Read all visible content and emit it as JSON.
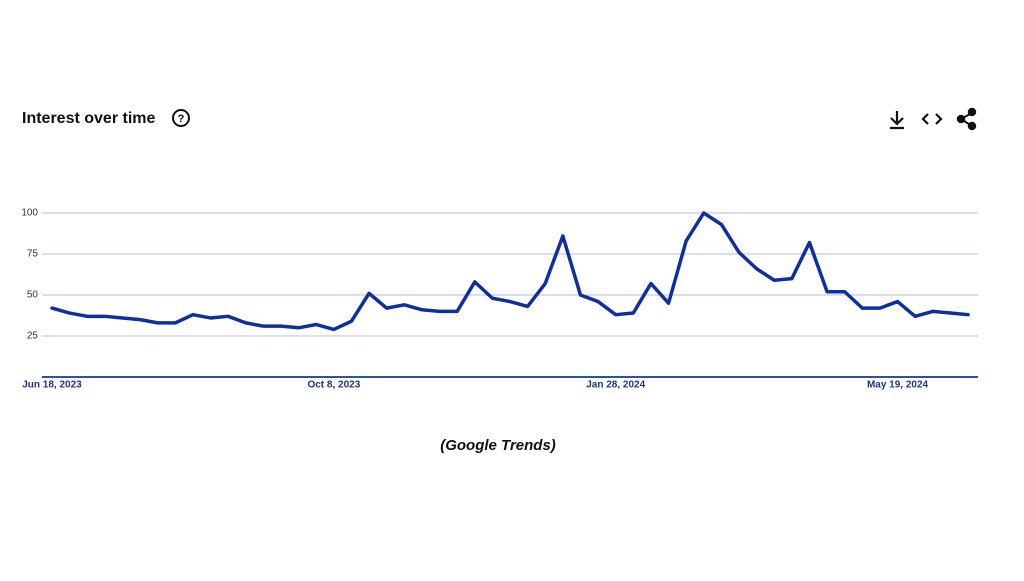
{
  "chart_data": {
    "type": "line",
    "title": "Interest over time",
    "caption": "(Google Trends)",
    "categories": [
      "Jun 18, 2023",
      null,
      null,
      null,
      null,
      null,
      null,
      null,
      null,
      null,
      null,
      null,
      null,
      null,
      null,
      null,
      "Oct 8, 2023",
      null,
      null,
      null,
      null,
      null,
      null,
      null,
      null,
      null,
      null,
      null,
      null,
      null,
      null,
      null,
      "Jan 28, 2024",
      null,
      null,
      null,
      null,
      null,
      null,
      null,
      null,
      null,
      null,
      null,
      null,
      null,
      null,
      null,
      "May 19, 2024",
      null,
      null,
      null,
      null
    ],
    "values": [
      42,
      39,
      37,
      37,
      36,
      35,
      33,
      33,
      38,
      36,
      37,
      33,
      31,
      31,
      30,
      32,
      29,
      34,
      51,
      42,
      44,
      41,
      40,
      40,
      58,
      48,
      46,
      43,
      57,
      86,
      50,
      46,
      38,
      39,
      57,
      45,
      83,
      100,
      93,
      76,
      66,
      59,
      60,
      82,
      52,
      52,
      42,
      42,
      46,
      37,
      40,
      39,
      38
    ],
    "color": "#0f2f9c",
    "ylim": [
      0,
      100
    ],
    "yticks": [
      25,
      50,
      75,
      100
    ],
    "grid": true
  }
}
